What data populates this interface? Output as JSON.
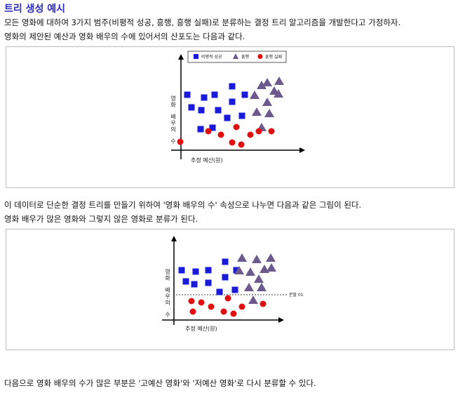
{
  "title": "트리 생성 예시",
  "para1": {
    "line1": "모든 영화에 대하여 3가지 범주(비평적 성공, 흥행, 흥행 실패)로 분류하는 결정 트리 알고리즘을 개발한다고 가정하자.",
    "line2": "영화의 제안된 예산과 영화 배우의 수에 있어서의 산포도는 다음과 같다."
  },
  "para2": {
    "line1": "이 데이터로 단순한 결정 트리를 만들기 위하여 '영화 배우의 수' 속성으로 나누면 다음과 같은 그림이 된다.",
    "line2": "영화 배우가 많은 영화와 그렇지 않은 영화로 분류가 된다."
  },
  "para3": {
    "line1": "다음으로 영화 배우의 수가 많은 부분은 '고예산 영화'와 '저예산 영화'로 다시 분류할 수 있다."
  },
  "colors": {
    "critical": "#1a1adb",
    "hit": "#6c5a8e",
    "flop": "#e01010",
    "title": "#2b2bb8"
  },
  "chart_data": [
    {
      "type": "scatter",
      "xlabel": "추정 예산(원)",
      "ylabel": "영화 배우의 수",
      "legend": [
        "비평적 성공",
        "흥행",
        "흥행 실패"
      ],
      "legend_position": "top",
      "series": [
        {
          "name": "비평적 성공",
          "marker": "square",
          "points": [
            [
              266,
              134
            ],
            [
              290,
              138
            ],
            [
              305,
              134
            ],
            [
              272,
              152
            ],
            [
              286,
              156
            ],
            [
              310,
              156
            ],
            [
              330,
              122
            ],
            [
              348,
              134
            ],
            [
              330,
              144
            ],
            [
              323,
              167
            ],
            [
              344,
              164
            ],
            [
              285,
              183
            ],
            [
              302,
              181
            ]
          ]
        },
        {
          "name": "흥행",
          "marker": "triangle",
          "points": [
            [
              380,
              116
            ],
            [
              397,
              114
            ],
            [
              372,
              120
            ],
            [
              390,
              128
            ],
            [
              396,
              132
            ],
            [
              362,
              134
            ],
            [
              380,
              144
            ],
            [
              365,
              158
            ],
            [
              383,
              160
            ],
            [
              372,
              180
            ]
          ]
        },
        {
          "name": "흥행 실패",
          "marker": "circle",
          "points": [
            [
              296,
              186
            ],
            [
              314,
              191
            ],
            [
              336,
              180
            ],
            [
              256,
              201
            ],
            [
              330,
              202
            ],
            [
              343,
              205
            ],
            [
              356,
              191
            ],
            [
              368,
              186
            ],
            [
              386,
              186
            ]
          ]
        }
      ]
    },
    {
      "type": "scatter",
      "xlabel": "추정 예산(원)",
      "ylabel": "영화 배우의 수",
      "split_label": "분할 01",
      "series": [
        {
          "name": "비평적 성공",
          "marker": "square",
          "points": [
            [
              258,
              384
            ],
            [
              278,
              386
            ],
            [
              296,
              384
            ],
            [
              264,
              400
            ],
            [
              276,
              404
            ],
            [
              296,
              402
            ],
            [
              320,
              372
            ],
            [
              336,
              384
            ],
            [
              320,
              394
            ],
            [
              312,
              415
            ],
            [
              334,
              412
            ]
          ]
        },
        {
          "name": "흥행",
          "marker": "triangle",
          "points": [
            [
              344,
              366
            ],
            [
              365,
              368
            ],
            [
              385,
              366
            ],
            [
              340,
              384
            ],
            [
              356,
              386
            ],
            [
              376,
              382
            ],
            [
              386,
              380
            ],
            [
              368,
              396
            ],
            [
              354,
              408
            ],
            [
              372,
              408
            ],
            [
              360,
              426
            ]
          ]
        },
        {
          "name": "흥행 실패",
          "marker": "circle",
          "points": [
            [
              272,
              428
            ],
            [
              286,
              430
            ],
            [
              300,
              436
            ],
            [
              324,
              424
            ],
            [
              344,
              436
            ],
            [
              374,
              432
            ],
            [
              274,
              443
            ],
            [
              318,
              443
            ],
            [
              332,
              446
            ]
          ]
        }
      ]
    }
  ]
}
